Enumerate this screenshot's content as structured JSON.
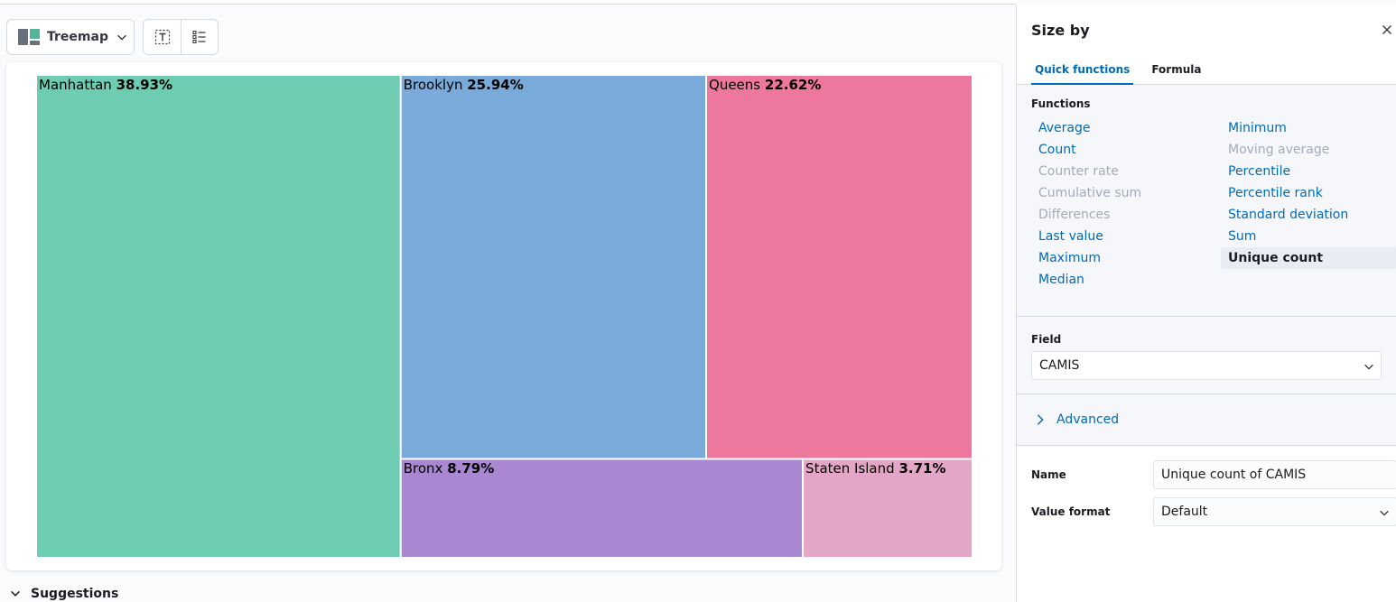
{
  "toolbar": {
    "chart_type_label": "Treemap"
  },
  "chart_data": {
    "type": "treemap",
    "items": [
      {
        "label": "Manhattan",
        "value": 38.93,
        "display": "38.93%",
        "color": "#6dccb1"
      },
      {
        "label": "Brooklyn",
        "value": 25.94,
        "display": "25.94%",
        "color": "#79aad9"
      },
      {
        "label": "Queens",
        "value": 22.62,
        "display": "22.62%",
        "color": "#ee789d"
      },
      {
        "label": "Bronx",
        "value": 8.79,
        "display": "8.79%",
        "color": "#a987d1"
      },
      {
        "label": "Staten Island",
        "value": 3.71,
        "display": "3.71%",
        "color": "#e4a6c7"
      }
    ]
  },
  "suggestions_label": "Suggestions",
  "flyout": {
    "title": "Size by",
    "tabs": [
      {
        "label": "Quick functions",
        "active": true
      },
      {
        "label": "Formula",
        "active": false
      }
    ],
    "functions_label": "Functions",
    "functions_left": [
      {
        "label": "Average",
        "state": "link"
      },
      {
        "label": "Count",
        "state": "link"
      },
      {
        "label": "Counter rate",
        "state": "disabled"
      },
      {
        "label": "Cumulative sum",
        "state": "disabled"
      },
      {
        "label": "Differences",
        "state": "disabled"
      },
      {
        "label": "Last value",
        "state": "link"
      },
      {
        "label": "Maximum",
        "state": "link"
      },
      {
        "label": "Median",
        "state": "link"
      }
    ],
    "functions_right": [
      {
        "label": "Minimum",
        "state": "link"
      },
      {
        "label": "Moving average",
        "state": "disabled"
      },
      {
        "label": "Percentile",
        "state": "link"
      },
      {
        "label": "Percentile rank",
        "state": "link"
      },
      {
        "label": "Standard deviation",
        "state": "link"
      },
      {
        "label": "Sum",
        "state": "link"
      },
      {
        "label": "Unique count",
        "state": "selected"
      }
    ],
    "field_label": "Field",
    "field_value": "CAMIS",
    "advanced_label": "Advanced",
    "name_label": "Name",
    "name_value": "Unique count of CAMIS",
    "value_format_label": "Value format",
    "value_format_value": "Default"
  },
  "colors": {
    "accent": "#006bb8",
    "disabled": "#a2abba"
  }
}
